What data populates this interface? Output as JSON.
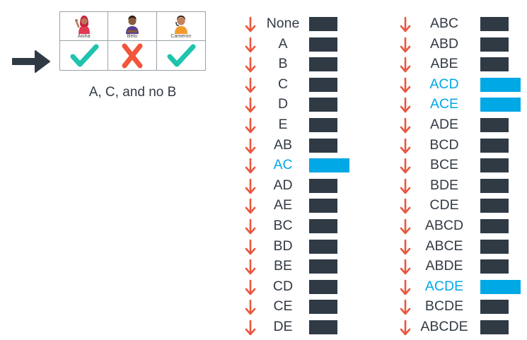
{
  "grid": {
    "people": [
      "Aisha",
      "Beto",
      "Cameron"
    ],
    "marks": [
      "check",
      "cross",
      "check"
    ]
  },
  "caption": "A, C, and no B",
  "colors": {
    "dark": "#2f3a45",
    "highlight": "#00a8e6",
    "arrow": "#e9573f",
    "check": "#1fc4ad",
    "cross": "#f2553a",
    "text": "#333a44"
  },
  "columns": [
    {
      "items": [
        {
          "label": "None",
          "highlight": false
        },
        {
          "label": "A",
          "highlight": false
        },
        {
          "label": "B",
          "highlight": false
        },
        {
          "label": "C",
          "highlight": false
        },
        {
          "label": "D",
          "highlight": false
        },
        {
          "label": "E",
          "highlight": false
        },
        {
          "label": "AB",
          "highlight": false
        },
        {
          "label": "AC",
          "highlight": true
        },
        {
          "label": "AD",
          "highlight": false
        },
        {
          "label": "AE",
          "highlight": false
        },
        {
          "label": "BC",
          "highlight": false
        },
        {
          "label": "BD",
          "highlight": false
        },
        {
          "label": "BE",
          "highlight": false
        },
        {
          "label": "CD",
          "highlight": false
        },
        {
          "label": "CE",
          "highlight": false
        },
        {
          "label": "DE",
          "highlight": false
        }
      ]
    },
    {
      "items": [
        {
          "label": "ABC",
          "highlight": false
        },
        {
          "label": "ABD",
          "highlight": false
        },
        {
          "label": "ABE",
          "highlight": false
        },
        {
          "label": "ACD",
          "highlight": true
        },
        {
          "label": "ACE",
          "highlight": true
        },
        {
          "label": "ADE",
          "highlight": false
        },
        {
          "label": "BCD",
          "highlight": false
        },
        {
          "label": "BCE",
          "highlight": false
        },
        {
          "label": "BDE",
          "highlight": false
        },
        {
          "label": "CDE",
          "highlight": false
        },
        {
          "label": "ABCD",
          "highlight": false
        },
        {
          "label": "ABCE",
          "highlight": false
        },
        {
          "label": "ABDE",
          "highlight": false
        },
        {
          "label": "ACDE",
          "highlight": true
        },
        {
          "label": "BCDE",
          "highlight": false
        },
        {
          "label": "ABCDE",
          "highlight": false
        }
      ]
    }
  ]
}
